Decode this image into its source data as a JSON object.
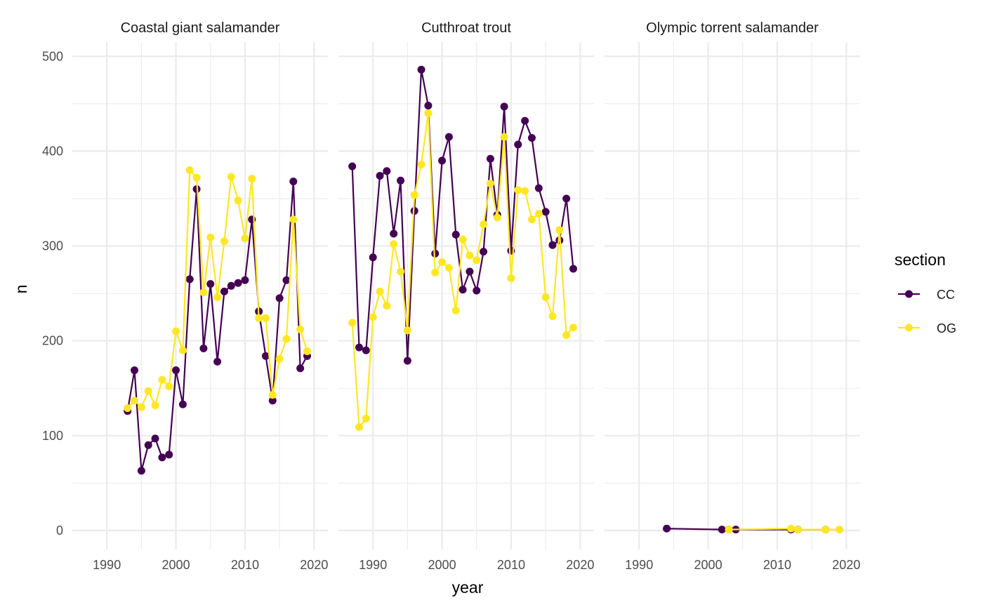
{
  "chart_data": {
    "type": "line",
    "facet_by": "species",
    "xlabel": "year",
    "ylabel": "n",
    "xlim": [
      1985,
      2022
    ],
    "ylim": [
      -20,
      515
    ],
    "x_ticks": [
      1990,
      2000,
      2010,
      2020
    ],
    "y_ticks": [
      0,
      100,
      200,
      300,
      400,
      500
    ],
    "grid": true,
    "legend": {
      "title": "section",
      "position": "right"
    },
    "colors": {
      "CC": "#440154",
      "OG": "#FDE725"
    },
    "panels": [
      {
        "title": "Coastal giant salamander",
        "series": [
          {
            "name": "CC",
            "x": [
              1993,
              1994,
              1995,
              1996,
              1997,
              1998,
              1999,
              2000,
              2001,
              2002,
              2003,
              2004,
              2005,
              2006,
              2007,
              2008,
              2009,
              2010,
              2011,
              2012,
              2013,
              2014,
              2015,
              2016,
              2017,
              2018,
              2019
            ],
            "y": [
              126,
              169,
              63,
              90,
              97,
              77,
              80,
              169,
              133,
              265,
              360,
              192,
              260,
              178,
              252,
              258,
              261,
              264,
              328,
              231,
              184,
              137,
              245,
              264,
              368,
              171,
              184
            ]
          },
          {
            "name": "OG",
            "x": [
              1993,
              1994,
              1995,
              1996,
              1997,
              1998,
              1999,
              2000,
              2001,
              2002,
              2003,
              2004,
              2005,
              2006,
              2007,
              2008,
              2009,
              2010,
              2011,
              2012,
              2013,
              2014,
              2015,
              2016,
              2017,
              2018,
              2019
            ],
            "y": [
              129,
              137,
              130,
              147,
              132,
              159,
              152,
              210,
              190,
              380,
              372,
              251,
              309,
              246,
              305,
              373,
              348,
              308,
              371,
              224,
              224,
              143,
              181,
              202,
              328,
              212,
              189
            ]
          }
        ]
      },
      {
        "title": "Cutthroat trout",
        "series": [
          {
            "name": "CC",
            "x": [
              1987,
              1988,
              1989,
              1990,
              1991,
              1992,
              1993,
              1994,
              1995,
              1996,
              1997,
              1998,
              1999,
              2000,
              2001,
              2002,
              2003,
              2004,
              2005,
              2006,
              2007,
              2008,
              2009,
              2010,
              2011,
              2012,
              2013,
              2014,
              2015,
              2016,
              2017,
              2018,
              2019
            ],
            "y": [
              384,
              193,
              190,
              288,
              374,
              379,
              313,
              369,
              179,
              337,
              486,
              448,
              292,
              390,
              415,
              312,
              254,
              273,
              253,
              294,
              392,
              333,
              447,
              295,
              407,
              432,
              414,
              361,
              336,
              301,
              306,
              350,
              276
            ]
          },
          {
            "name": "OG",
            "x": [
              1987,
              1988,
              1989,
              1990,
              1991,
              1992,
              1993,
              1994,
              1995,
              1996,
              1997,
              1998,
              1999,
              2000,
              2001,
              2002,
              2003,
              2004,
              2005,
              2006,
              2007,
              2008,
              2009,
              2010,
              2011,
              2012,
              2013,
              2014,
              2015,
              2016,
              2017,
              2018,
              2019
            ],
            "y": [
              219,
              109,
              118,
              225,
              252,
              237,
              302,
              273,
              211,
              354,
              386,
              440,
              272,
              283,
              277,
              232,
              307,
              290,
              285,
              323,
              366,
              330,
              415,
              266,
              359,
              358,
              328,
              334,
              246,
              226,
              317,
              206,
              214
            ]
          }
        ]
      },
      {
        "title": "Olympic torrent salamander",
        "series": [
          {
            "name": "CC",
            "x": [
              1994,
              2002,
              2003,
              2004,
              2012,
              2013,
              2017
            ],
            "y": [
              2,
              1,
              1,
              1,
              1,
              1,
              1
            ]
          },
          {
            "name": "OG",
            "x": [
              2003,
              2012,
              2013,
              2017,
              2019
            ],
            "y": [
              1,
              2,
              1,
              1,
              1
            ]
          }
        ]
      }
    ]
  }
}
